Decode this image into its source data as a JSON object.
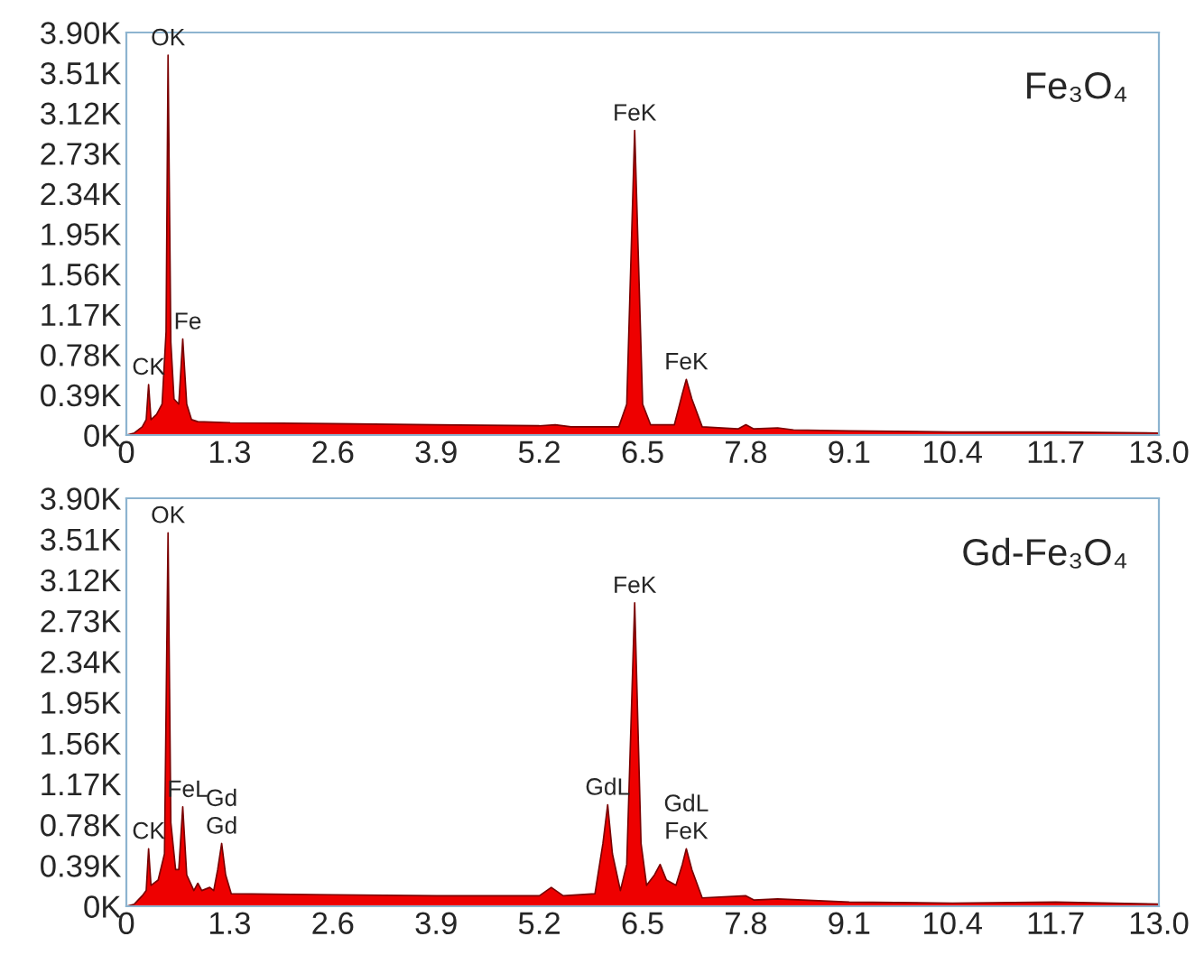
{
  "chart_data": [
    {
      "type": "area",
      "color": "#ee0000",
      "annotations": [
        "Fe₃O₄",
        {
          "text": "CK",
          "x": 0.28,
          "y": 0.49
        },
        {
          "text": "OK",
          "x": 0.525,
          "y": 3.68
        },
        {
          "text": "Fe",
          "x": 0.71,
          "y": 0.93
        },
        {
          "text": "FeK",
          "x": 6.4,
          "y": 2.95
        },
        {
          "text": "FeK",
          "x": 7.05,
          "y": 0.54
        }
      ],
      "x": [
        0,
        0.1,
        0.2,
        0.25,
        0.28,
        0.31,
        0.38,
        0.45,
        0.5,
        0.525,
        0.56,
        0.6,
        0.66,
        0.71,
        0.76,
        0.82,
        0.9,
        1.3,
        2.6,
        3.9,
        5.2,
        5.4,
        5.6,
        6.2,
        6.3,
        6.4,
        6.5,
        6.6,
        6.9,
        7.0,
        7.05,
        7.12,
        7.25,
        7.7,
        7.8,
        7.9,
        8.2,
        8.4,
        9.1,
        10.4,
        11.7,
        13.0
      ],
      "values": [
        0,
        0.02,
        0.08,
        0.15,
        0.49,
        0.15,
        0.2,
        0.3,
        1.0,
        3.68,
        0.9,
        0.35,
        0.3,
        0.93,
        0.3,
        0.15,
        0.13,
        0.12,
        0.11,
        0.1,
        0.09,
        0.1,
        0.08,
        0.08,
        0.3,
        2.95,
        0.3,
        0.1,
        0.1,
        0.4,
        0.54,
        0.35,
        0.08,
        0.06,
        0.1,
        0.06,
        0.07,
        0.05,
        0.04,
        0.03,
        0.03,
        0.02
      ],
      "xlim": [
        0,
        13
      ],
      "ylim": [
        0,
        3.9
      ],
      "xticks": [
        0,
        1.3,
        2.6,
        3.9,
        5.2,
        6.5,
        7.8,
        9.1,
        10.4,
        11.7,
        {
          "value": 13,
          "label": "13.0"
        }
      ],
      "yticks": [
        {
          "value": 0,
          "label": "0K"
        },
        {
          "value": 0.39,
          "label": "0.39K"
        },
        {
          "value": 0.78,
          "label": "0.78K"
        },
        {
          "value": 1.17,
          "label": "1.17K"
        },
        {
          "value": 1.56,
          "label": "1.56K"
        },
        {
          "value": 1.95,
          "label": "1.95K"
        },
        {
          "value": 2.34,
          "label": "2.34K"
        },
        {
          "value": 2.73,
          "label": "2.73K"
        },
        {
          "value": 3.12,
          "label": "3.12K"
        },
        {
          "value": 3.51,
          "label": "3.51K"
        },
        {
          "value": 3.9,
          "label": "3.90K"
        }
      ]
    },
    {
      "type": "area",
      "color": "#ee0000",
      "annotations": [
        "Gd-Fe₃O₄",
        {
          "text": "CK",
          "x": 0.28,
          "y": 0.55
        },
        {
          "text": "OK",
          "x": 0.525,
          "y": 3.57
        },
        {
          "text": "FeL",
          "x": 0.71,
          "y": 0.95
        },
        {
          "text": "Gd",
          "x": 1.2,
          "y": 0.6
        },
        {
          "text": "Gd",
          "x": 1.2,
          "y": 0.6
        },
        {
          "text": "GdL",
          "x": 6.06,
          "y": 0.97
        },
        {
          "text": "FeK",
          "x": 6.4,
          "y": 2.9
        },
        {
          "text": "FeK",
          "x": 7.05,
          "y": 0.55
        },
        {
          "text": "GdL",
          "x": 7.05,
          "y": 0.55
        }
      ],
      "x": [
        0,
        0.1,
        0.2,
        0.25,
        0.28,
        0.31,
        0.4,
        0.48,
        0.525,
        0.56,
        0.62,
        0.66,
        0.71,
        0.76,
        0.85,
        0.9,
        0.95,
        1.05,
        1.1,
        1.15,
        1.2,
        1.25,
        1.32,
        2.6,
        3.9,
        5.2,
        5.35,
        5.5,
        5.9,
        6.0,
        6.06,
        6.12,
        6.22,
        6.3,
        6.4,
        6.48,
        6.55,
        6.65,
        6.72,
        6.8,
        6.92,
        7.0,
        7.05,
        7.12,
        7.25,
        7.8,
        7.9,
        8.2,
        9.1,
        10.4,
        11.7,
        13.0
      ],
      "values": [
        0,
        0.02,
        0.1,
        0.15,
        0.55,
        0.2,
        0.25,
        0.5,
        3.57,
        0.8,
        0.35,
        0.35,
        0.95,
        0.3,
        0.15,
        0.22,
        0.15,
        0.18,
        0.15,
        0.35,
        0.6,
        0.3,
        0.12,
        0.11,
        0.1,
        0.1,
        0.18,
        0.1,
        0.12,
        0.6,
        0.97,
        0.5,
        0.15,
        0.4,
        2.9,
        0.6,
        0.2,
        0.3,
        0.4,
        0.25,
        0.2,
        0.4,
        0.55,
        0.35,
        0.08,
        0.1,
        0.06,
        0.07,
        0.04,
        0.03,
        0.04,
        0.02
      ],
      "xlim": [
        0,
        13
      ],
      "ylim": [
        0,
        3.9
      ],
      "xticks": [
        0,
        1.3,
        2.6,
        3.9,
        5.2,
        6.5,
        7.8,
        9.1,
        10.4,
        11.7,
        {
          "value": 13,
          "label": "13.0"
        }
      ],
      "yticks": [
        {
          "value": 0,
          "label": "0K"
        },
        {
          "value": 0.39,
          "label": "0.39K"
        },
        {
          "value": 0.78,
          "label": "0.78K"
        },
        {
          "value": 1.17,
          "label": "1.17K"
        },
        {
          "value": 1.56,
          "label": "1.56K"
        },
        {
          "value": 1.95,
          "label": "1.95K"
        },
        {
          "value": 2.34,
          "label": "2.34K"
        },
        {
          "value": 2.73,
          "label": "2.73K"
        },
        {
          "value": 3.12,
          "label": "3.12K"
        },
        {
          "value": 3.51,
          "label": "3.51K"
        },
        {
          "value": 3.9,
          "label": "3.90K"
        }
      ]
    }
  ]
}
